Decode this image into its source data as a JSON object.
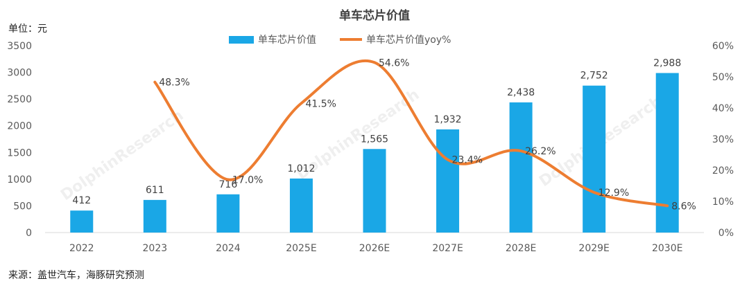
{
  "chart_data": {
    "type": "bar",
    "title": "单车芯片价值",
    "unit_label": "单位：元",
    "categories": [
      "2022",
      "2023",
      "2024",
      "2025E",
      "2026E",
      "2027E",
      "2028E",
      "2029E",
      "2030E"
    ],
    "series": [
      {
        "name": "单车芯片价值",
        "type": "bar",
        "axis": "left",
        "values": [
          412,
          611,
          716,
          1012,
          1565,
          1932,
          2438,
          2752,
          2988
        ],
        "labels": [
          "412",
          "611",
          "716",
          "1,012",
          "1,565",
          "1,932",
          "2,438",
          "2,752",
          "2,988"
        ]
      },
      {
        "name": "单车芯片价值yoy%",
        "type": "line",
        "axis": "right",
        "values": [
          null,
          48.3,
          17.0,
          41.5,
          54.6,
          23.4,
          26.2,
          12.9,
          8.6
        ],
        "labels": [
          "",
          "48.3%",
          "17.0%",
          "41.5%",
          "54.6%",
          "23.4%",
          "26.2%",
          "12.9%",
          "8.6%"
        ]
      }
    ],
    "ylim": [
      0,
      3500
    ],
    "yticks": [
      "0",
      "500",
      "1000",
      "1500",
      "2000",
      "2500",
      "3000",
      "3500"
    ],
    "y2lim": [
      0,
      60
    ],
    "y2ticks": [
      "0%",
      "10%",
      "20%",
      "30%",
      "40%",
      "50%",
      "60%"
    ],
    "legend_position": "top-center",
    "grid": false,
    "colors": {
      "bar": "#1aa7e6",
      "line": "#ed7d31"
    },
    "source": "来源：盖世汽车，海豚研究预测",
    "watermark": "DolphinResearch"
  }
}
